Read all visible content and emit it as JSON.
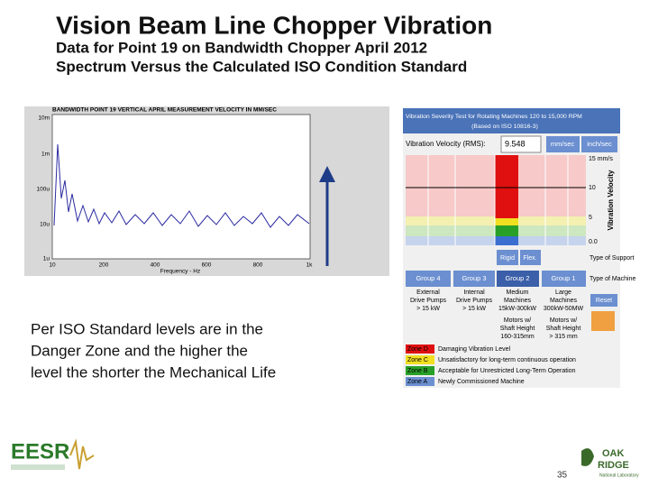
{
  "slide": {
    "title": "Vision Beam Line Chopper Vibration",
    "subtitle_lines": [
      "Data for Point 19 on Bandwidth Chopper April 2012",
      "Spectrum Versus the Calculated ISO Condition Standard"
    ],
    "body_lines": [
      "Per ISO Standard levels are in the",
      "Danger Zone and the higher the",
      "level the shorter the Mechanical Life"
    ],
    "spectrum": {
      "title": "BANDWIDTH POINT 19 VERTICAL APRIL MEASUREMENT VELOCITY IN MM/SEC",
      "y_ticks": [
        "10m",
        "1m",
        "100u",
        "10u",
        "1u"
      ],
      "x_ticks": [
        "10",
        "200",
        "400",
        "600",
        "800",
        "1k"
      ],
      "x_label": "Frequency - Hz"
    },
    "iso_panel": {
      "header": [
        "Vibration Severity Test for Rotating Machines 120 to 15,000 RPM",
        "(Based on ISO 10816-3)"
      ],
      "velocity_label": "Vibration Velocity (RMS):",
      "velocity_value": "9.548",
      "unit_buttons": [
        "mm/sec",
        "inch/sec"
      ],
      "scale_labels": [
        "15 mm/s",
        "10",
        "5",
        "0.0"
      ],
      "axis_label": "Vibration Velocity",
      "support_buttons": [
        "Rigid",
        "Flex."
      ],
      "support_label": "Type of Support",
      "groups": [
        "Group 4",
        "Group 3",
        "Group 2",
        "Group 1"
      ],
      "machine_label": "Type of Machine",
      "group_descriptions": [
        [
          "External",
          "Drive Pumps",
          "> 15 kW"
        ],
        [
          "Internal",
          "Drive Pumps",
          "> 15 kW"
        ],
        [
          "Medium",
          "Machines",
          "15kW-300kW",
          "Motors w/",
          "Shaft Height",
          "160-315mm"
        ],
        [
          "Large",
          "Machines",
          "300kW-50MW",
          "Motors w/",
          "Shaft Height",
          "> 315 mm"
        ]
      ],
      "reset": "Reset",
      "zones": [
        {
          "zone": "Zone D",
          "text": "Damaging Vibration Level"
        },
        {
          "zone": "Zone C",
          "text": "Unsatisfactory for long-term continuous operation"
        },
        {
          "zone": "Zone B",
          "text": "Acceptable for Unrestricted Long-Term Operation"
        },
        {
          "zone": "Zone A",
          "text": "Newly Commissioned Machine"
        }
      ]
    },
    "logos": {
      "left": "EESR",
      "right": [
        "OAK",
        "RIDGE",
        "National Laboratory"
      ]
    },
    "page_number": "35"
  }
}
